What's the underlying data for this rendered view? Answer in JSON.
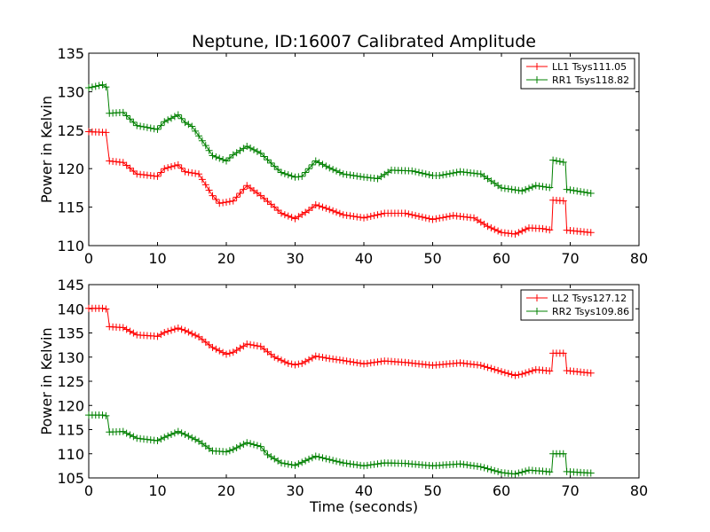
{
  "figure": {
    "title": "Neptune, ID:16007 Calibrated Amplitude",
    "xlabel": "Time (seconds)"
  },
  "chart_data": [
    {
      "type": "line",
      "title": "Neptune, ID:16007 Calibrated Amplitude",
      "xlabel": "",
      "ylabel": "Power in Kelvin",
      "xlim": [
        0,
        80
      ],
      "ylim": [
        110,
        135
      ],
      "xticks": [
        0,
        10,
        20,
        30,
        40,
        50,
        60,
        70,
        80
      ],
      "yticks": [
        110,
        115,
        120,
        125,
        130,
        135
      ],
      "grid": false,
      "legend": "top-right",
      "marker": "+",
      "series": [
        {
          "name": "LL1 Tsys111.05",
          "color": "#ff0000",
          "x": [
            0,
            2.5,
            3,
            5,
            7,
            10,
            11,
            13,
            14,
            16,
            18,
            19,
            21,
            23,
            25,
            27,
            28,
            30,
            32,
            33,
            35,
            37,
            40,
            43,
            46,
            50,
            53,
            56,
            58,
            60,
            62,
            64,
            66,
            67.3,
            67.5,
            69.3,
            69.5,
            73
          ],
          "y": [
            124.8,
            124.7,
            121,
            120.8,
            119.3,
            119,
            120,
            120.5,
            119.6,
            119.3,
            116.5,
            115.5,
            115.8,
            117.8,
            116.5,
            115,
            114.2,
            113.5,
            114.6,
            115.3,
            114.7,
            114,
            113.6,
            114.2,
            114.2,
            113.4,
            113.9,
            113.6,
            112.5,
            111.7,
            111.5,
            112.3,
            112.2,
            112,
            115.9,
            115.8,
            112,
            111.7
          ]
        },
        {
          "name": "RR1 Tsys118.82",
          "color": "#008000",
          "x": [
            0,
            2,
            2.7,
            3,
            5,
            7,
            10,
            11,
            13,
            14,
            15,
            17,
            18,
            20,
            21,
            23,
            25,
            27,
            28,
            30,
            31,
            33,
            35,
            37,
            40,
            42,
            44,
            47,
            50,
            51,
            54,
            57,
            58,
            60,
            63,
            65,
            67.3,
            67.5,
            69.3,
            69.5,
            73
          ],
          "y": [
            130.5,
            130.9,
            130.5,
            127.2,
            127.3,
            125.6,
            125.1,
            126.1,
            127,
            126,
            125.5,
            123,
            121.7,
            121,
            121.8,
            122.9,
            122,
            120.3,
            119.5,
            118.9,
            119,
            121,
            120.1,
            119.3,
            118.9,
            118.7,
            119.8,
            119.7,
            119.1,
            119.1,
            119.6,
            119.3,
            118.7,
            117.5,
            117.1,
            117.8,
            117.5,
            121.1,
            120.8,
            117.3,
            116.8
          ]
        }
      ]
    },
    {
      "type": "line",
      "title": "",
      "xlabel": "Time (seconds)",
      "ylabel": "Power in Kelvin",
      "xlim": [
        0,
        80
      ],
      "ylim": [
        105,
        145
      ],
      "xticks": [
        0,
        10,
        20,
        30,
        40,
        50,
        60,
        70,
        80
      ],
      "yticks": [
        105,
        110,
        115,
        120,
        125,
        130,
        135,
        140,
        145
      ],
      "grid": false,
      "legend": "top-right",
      "marker": "+",
      "series": [
        {
          "name": "LL2 Tsys127.12",
          "color": "#ff0000",
          "x": [
            0,
            2,
            2.7,
            3,
            5,
            7,
            10,
            11,
            13,
            14,
            16,
            18,
            20,
            21,
            23,
            25,
            27,
            29,
            30,
            31,
            33,
            35,
            37,
            40,
            43,
            46,
            50,
            54,
            57,
            60,
            62,
            63,
            65,
            67.3,
            67.5,
            69.3,
            69.5,
            73
          ],
          "y": [
            140.1,
            140.1,
            139.9,
            136.3,
            136.1,
            134.6,
            134.3,
            135.1,
            136,
            135.5,
            134.2,
            132,
            130.6,
            131,
            132.7,
            132.2,
            130,
            128.7,
            128.4,
            128.7,
            130.2,
            129.7,
            129.3,
            128.6,
            129.2,
            128.9,
            128.3,
            128.8,
            128.3,
            127,
            126.2,
            126.5,
            127.4,
            127.1,
            130.8,
            130.8,
            127.2,
            126.7
          ]
        },
        {
          "name": "RR2 Tsys109.86",
          "color": "#008000",
          "x": [
            0,
            2,
            2.7,
            3,
            5,
            7,
            10,
            11,
            13,
            14,
            16,
            18,
            20,
            21,
            23,
            25,
            26,
            28,
            30,
            33,
            35,
            37,
            40,
            43,
            46,
            50,
            54,
            57,
            60,
            62,
            64,
            66,
            67.3,
            67.5,
            69.3,
            69.5,
            73
          ],
          "y": [
            118,
            118,
            117.8,
            114.5,
            114.6,
            113.2,
            112.7,
            113.4,
            114.6,
            114,
            112.6,
            110.6,
            110.4,
            110.9,
            112.3,
            111.5,
            109.8,
            108.1,
            107.6,
            109.5,
            108.8,
            108.1,
            107.5,
            108.1,
            108,
            107.5,
            107.9,
            107.3,
            106.1,
            105.8,
            106.6,
            106.4,
            106.2,
            110,
            110,
            106.3,
            106
          ]
        }
      ]
    }
  ]
}
